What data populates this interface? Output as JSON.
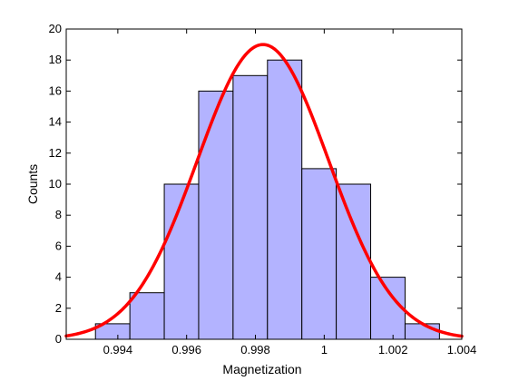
{
  "chart_data": {
    "type": "bar",
    "subtype": "histogram-with-fit-curve",
    "title": "",
    "xlabel": "Magnetization",
    "ylabel": "Counts",
    "xlim": [
      0.9925,
      1.004
    ],
    "ylim": [
      0,
      20
    ],
    "xticks": [
      0.994,
      0.996,
      0.998,
      1,
      1.002,
      1.004
    ],
    "xtick_labels": [
      "0.994",
      "0.996",
      "0.998",
      "1",
      "1.002",
      "1.004"
    ],
    "yticks": [
      0,
      2,
      4,
      6,
      8,
      10,
      12,
      14,
      16,
      18,
      20
    ],
    "ytick_labels": [
      "0",
      "2",
      "4",
      "6",
      "8",
      "10",
      "12",
      "14",
      "16",
      "18",
      "20"
    ],
    "grid": false,
    "bins": [
      {
        "x0": 0.99335,
        "x1": 0.99435,
        "count": 1
      },
      {
        "x0": 0.99435,
        "x1": 0.99535,
        "count": 3
      },
      {
        "x0": 0.99535,
        "x1": 0.99635,
        "count": 10
      },
      {
        "x0": 0.99635,
        "x1": 0.99735,
        "count": 16
      },
      {
        "x0": 0.99735,
        "x1": 0.99835,
        "count": 17
      },
      {
        "x0": 0.99835,
        "x1": 0.99935,
        "count": 18
      },
      {
        "x0": 0.99935,
        "x1": 1.00035,
        "count": 11
      },
      {
        "x0": 1.00035,
        "x1": 1.00135,
        "count": 10
      },
      {
        "x0": 1.00135,
        "x1": 1.00235,
        "count": 4
      },
      {
        "x0": 1.00235,
        "x1": 1.00335,
        "count": 1
      }
    ],
    "fit_curve": {
      "kind": "gaussian",
      "mean": 0.99822,
      "sigma": 0.00191,
      "peak": 19,
      "x_range": [
        0.9925,
        1.004
      ]
    },
    "colors": {
      "bar_fill": "#b3b3ff",
      "bar_edge": "#000000",
      "fit_line": "#ff0000",
      "axes": "#000000",
      "background": "#ffffff"
    }
  }
}
